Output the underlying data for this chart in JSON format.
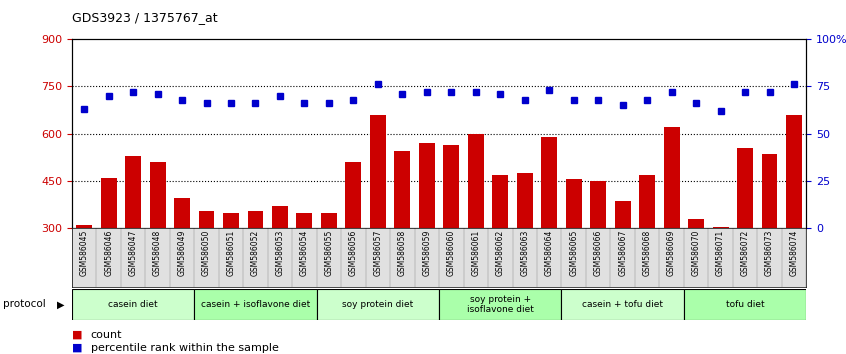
{
  "title": "GDS3923 / 1375767_at",
  "samples": [
    "GSM586045",
    "GSM586046",
    "GSM586047",
    "GSM586048",
    "GSM586049",
    "GSM586050",
    "GSM586051",
    "GSM586052",
    "GSM586053",
    "GSM586054",
    "GSM586055",
    "GSM586056",
    "GSM586057",
    "GSM586058",
    "GSM586059",
    "GSM586060",
    "GSM586061",
    "GSM586062",
    "GSM586063",
    "GSM586064",
    "GSM586065",
    "GSM586066",
    "GSM586067",
    "GSM586068",
    "GSM586069",
    "GSM586070",
    "GSM586071",
    "GSM586072",
    "GSM586073",
    "GSM586074"
  ],
  "counts": [
    310,
    460,
    530,
    510,
    395,
    355,
    350,
    355,
    370,
    350,
    350,
    510,
    660,
    545,
    570,
    565,
    600,
    470,
    475,
    590,
    455,
    450,
    385,
    470,
    620,
    330,
    305,
    555,
    535,
    660
  ],
  "percentile": [
    63,
    70,
    72,
    71,
    68,
    66,
    66,
    66,
    70,
    66,
    66,
    68,
    76,
    71,
    72,
    72,
    72,
    71,
    68,
    73,
    68,
    68,
    65,
    68,
    72,
    66,
    62,
    72,
    72,
    76
  ],
  "groups": [
    {
      "label": "casein diet",
      "start": 0,
      "end": 5,
      "color": "#ccffcc"
    },
    {
      "label": "casein + isoflavone diet",
      "start": 5,
      "end": 10,
      "color": "#aaffaa"
    },
    {
      "label": "soy protein diet",
      "start": 10,
      "end": 15,
      "color": "#ccffcc"
    },
    {
      "label": "soy protein +\nisoflavone diet",
      "start": 15,
      "end": 20,
      "color": "#aaffaa"
    },
    {
      "label": "casein + tofu diet",
      "start": 20,
      "end": 25,
      "color": "#ccffcc"
    },
    {
      "label": "tofu diet",
      "start": 25,
      "end": 30,
      "color": "#aaffaa"
    }
  ],
  "bar_color": "#cc0000",
  "dot_color": "#0000cc",
  "ylim_left": [
    300,
    900
  ],
  "ylim_right": [
    0,
    100
  ],
  "yticks_left": [
    300,
    450,
    600,
    750,
    900
  ],
  "yticks_right": [
    0,
    25,
    50,
    75,
    100
  ],
  "grid_values": [
    450,
    600,
    750
  ],
  "left_axis_color": "#cc0000",
  "right_axis_color": "#0000cc"
}
